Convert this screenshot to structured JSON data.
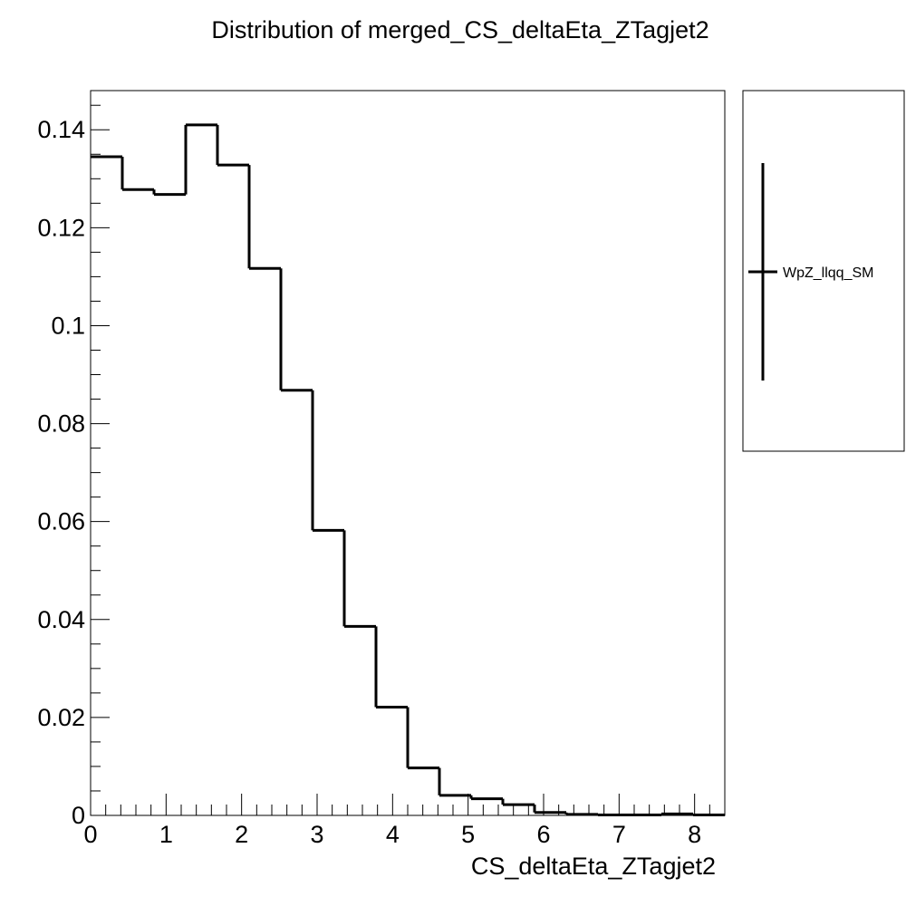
{
  "chart_data": {
    "type": "bar",
    "style": "step-histogram",
    "title": "Distribution of merged_CS_deltaEta_ZTagjet2",
    "xlabel": "CS_deltaEta_ZTagjet2",
    "ylabel": "",
    "xlim": [
      0,
      8.4
    ],
    "ylim": [
      0,
      0.148
    ],
    "grid": false,
    "legend_position": "right",
    "x_ticks": [
      "0",
      "1",
      "2",
      "3",
      "4",
      "5",
      "6",
      "7",
      "8"
    ],
    "y_ticks": [
      "0",
      "0.02",
      "0.04",
      "0.06",
      "0.08",
      "0.1",
      "0.12",
      "0.14"
    ],
    "bin_edges": [
      0,
      0.42,
      0.84,
      1.26,
      1.68,
      2.1,
      2.52,
      2.94,
      3.36,
      3.78,
      4.2,
      4.62,
      5.04,
      5.46,
      5.88,
      6.3,
      6.72,
      7.14,
      7.56,
      7.98,
      8.4
    ],
    "series": [
      {
        "name": "WpZ_llqq_SM",
        "color": "#000000",
        "values": [
          0.1345,
          0.1278,
          0.1268,
          0.141,
          0.1328,
          0.1117,
          0.0868,
          0.0582,
          0.0386,
          0.0221,
          0.0097,
          0.0041,
          0.0034,
          0.0022,
          0.0006,
          0.0002,
          0.0001,
          0.0001,
          0.0003,
          0.0001
        ]
      }
    ]
  }
}
